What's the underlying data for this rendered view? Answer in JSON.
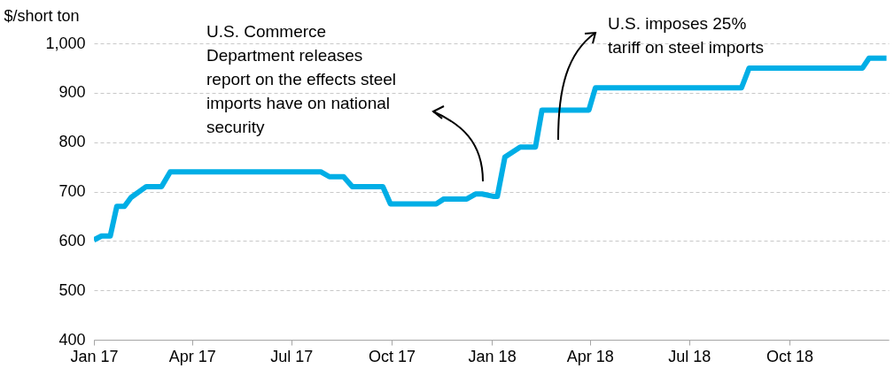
{
  "chart_data": {
    "type": "line",
    "ylabel": "$/short ton",
    "annotations": [
      "U.S. Commerce Department releases report on the effects steel imports have on national security",
      "U.S. imposes 25% tariff on steel imports"
    ],
    "xlim": [
      "2017-01-01",
      "2018-12-31"
    ],
    "xticks": [
      {
        "value": "2017-01-01",
        "label": "Jan 17"
      },
      {
        "value": "2017-04-01",
        "label": "Apr 17"
      },
      {
        "value": "2017-07-01",
        "label": "Jul 17"
      },
      {
        "value": "2017-10-01",
        "label": "Oct 17"
      },
      {
        "value": "2018-01-01",
        "label": "Jan 18"
      },
      {
        "value": "2018-04-01",
        "label": "Apr 18"
      },
      {
        "value": "2018-07-01",
        "label": "Jul 18"
      },
      {
        "value": "2018-10-01",
        "label": "Oct 18"
      }
    ],
    "ylim": [
      400,
      1000
    ],
    "yticks": [
      400,
      500,
      600,
      700,
      800,
      900,
      {
        "value": 1000,
        "label": "1,000"
      }
    ],
    "grid": "y",
    "marker": "none",
    "line_style": "solid",
    "x": [
      "2017-01-01",
      "2017-01-08",
      "2017-01-16",
      "2017-01-22",
      "2017-01-29",
      "2017-02-04",
      "2017-02-18",
      "2017-03-04",
      "2017-03-12",
      "2017-07-28",
      "2017-08-05",
      "2017-08-18",
      "2017-08-26",
      "2017-09-23",
      "2017-09-30",
      "2017-11-11",
      "2017-11-18",
      "2017-12-09",
      "2017-12-17",
      "2017-12-23",
      "2018-01-03",
      "2018-01-06",
      "2018-01-13",
      "2018-01-27",
      "2018-02-10",
      "2018-02-16",
      "2018-03-31",
      "2018-04-06",
      "2018-08-18",
      "2018-08-25",
      "2018-12-07",
      "2018-12-13",
      "2018-12-29"
    ],
    "series": [
      {
        "color": "#00aee6",
        "values": [
          602,
          610,
          610,
          670,
          670,
          688,
          710,
          710,
          740,
          740,
          730,
          730,
          710,
          710,
          675,
          675,
          685,
          685,
          695,
          695,
          690,
          690,
          770,
          790,
          790,
          865,
          865,
          910,
          910,
          950,
          950,
          970,
          970
        ]
      }
    ]
  }
}
